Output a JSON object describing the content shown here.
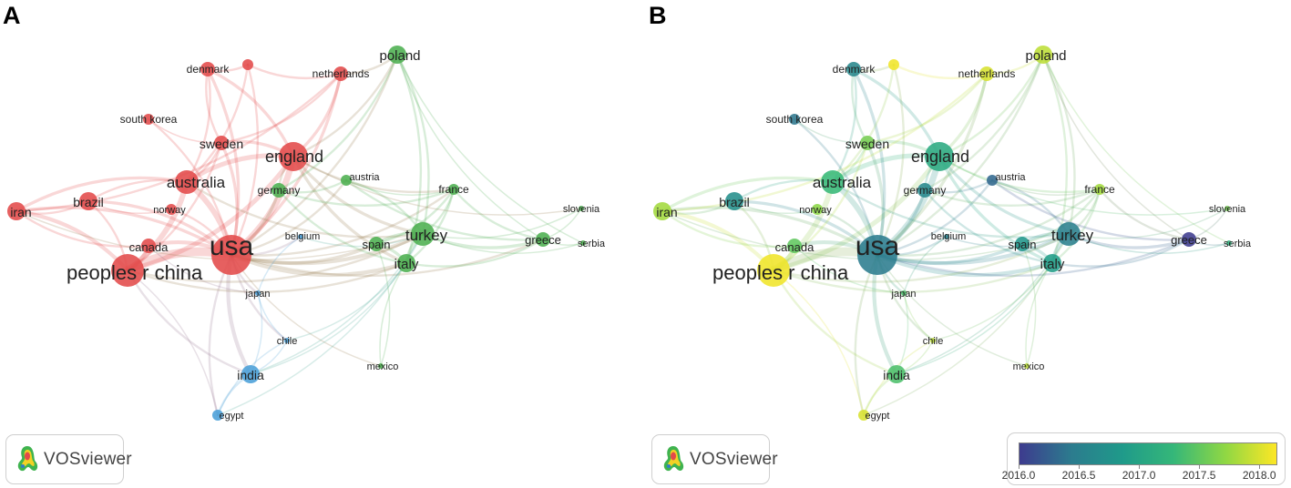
{
  "panels": [
    {
      "letter": "A",
      "color_mode": "cluster",
      "logo_text": "VOSviewer"
    },
    {
      "letter": "B",
      "color_mode": "overlay",
      "logo_text": "VOSviewer"
    }
  ],
  "legend": {
    "min": 2016.0,
    "max": 2018.15,
    "ticks": [
      "2016.0",
      "2016.5",
      "2017.0",
      "2017.5",
      "2018.0"
    ],
    "gradient": [
      "#3d3b8e",
      "#2c7b8e",
      "#1f9a8a",
      "#35b779",
      "#8fd744",
      "#fde725"
    ]
  },
  "cluster_colors": {
    "1": "#e34a4a",
    "2": "#4caf50",
    "3": "#4a9fd8"
  },
  "nodes": [
    {
      "id": "usa",
      "label": "usa",
      "cluster": 1,
      "year": 2016.45,
      "weight": 10
    },
    {
      "id": "china",
      "label": "peoples r china",
      "cluster": 1,
      "year": 2018.1,
      "weight": 9
    },
    {
      "id": "england",
      "label": "england",
      "cluster": 1,
      "year": 2017.1,
      "weight": 6
    },
    {
      "id": "australia",
      "label": "australia",
      "cluster": 1,
      "year": 2017.3,
      "weight": 5
    },
    {
      "id": "iran",
      "label": "iran",
      "cluster": 1,
      "year": 2017.8,
      "weight": 4
    },
    {
      "id": "brazil",
      "label": "brazil",
      "cluster": 1,
      "year": 2016.7,
      "weight": 4
    },
    {
      "id": "canada",
      "label": "canada",
      "cluster": 1,
      "year": 2017.5,
      "weight": 3
    },
    {
      "id": "sweden",
      "label": "sweden",
      "cluster": 1,
      "year": 2017.6,
      "weight": 3
    },
    {
      "id": "denmark",
      "label": "denmark",
      "cluster": 1,
      "year": 2016.6,
      "weight": 3
    },
    {
      "id": "netherlands",
      "label": "netherlands",
      "cluster": 1,
      "year": 2018.0,
      "weight": 3
    },
    {
      "id": "southkorea",
      "label": "south korea",
      "cluster": 1,
      "year": 2016.4,
      "weight": 2
    },
    {
      "id": "norway",
      "label": "norway",
      "cluster": 1,
      "year": 2017.7,
      "weight": 2
    },
    {
      "id": "unlabeled",
      "label": "",
      "cluster": 1,
      "year": 2018.1,
      "weight": 2
    },
    {
      "id": "turkey",
      "label": "turkey",
      "cluster": 2,
      "year": 2016.5,
      "weight": 5
    },
    {
      "id": "italy",
      "label": "italy",
      "cluster": 2,
      "year": 2016.9,
      "weight": 4
    },
    {
      "id": "spain",
      "label": "spain",
      "cluster": 2,
      "year": 2016.8,
      "weight": 3
    },
    {
      "id": "germany",
      "label": "germany",
      "cluster": 2,
      "year": 2016.6,
      "weight": 3
    },
    {
      "id": "poland",
      "label": "poland",
      "cluster": 2,
      "year": 2017.9,
      "weight": 4
    },
    {
      "id": "france",
      "label": "france",
      "cluster": 2,
      "year": 2017.8,
      "weight": 2
    },
    {
      "id": "austria",
      "label": "austria",
      "cluster": 2,
      "year": 2016.3,
      "weight": 2
    },
    {
      "id": "greece",
      "label": "greece",
      "cluster": 2,
      "year": 2016.0,
      "weight": 3
    },
    {
      "id": "slovenia",
      "label": "slovenia",
      "cluster": 2,
      "year": 2017.6,
      "weight": 1
    },
    {
      "id": "serbia",
      "label": "serbia",
      "cluster": 2,
      "year": 2017.2,
      "weight": 1
    },
    {
      "id": "mexico",
      "label": "mexico",
      "cluster": 2,
      "year": 2017.9,
      "weight": 1
    },
    {
      "id": "belgium",
      "label": "belgium",
      "cluster": 3,
      "year": 2016.5,
      "weight": 1
    },
    {
      "id": "japan",
      "label": "japan",
      "cluster": 3,
      "year": 2017.4,
      "weight": 1
    },
    {
      "id": "chile",
      "label": "chile",
      "cluster": 3,
      "year": 2017.9,
      "weight": 1
    },
    {
      "id": "india",
      "label": "india",
      "cluster": 3,
      "year": 2017.4,
      "weight": 4
    },
    {
      "id": "egypt",
      "label": "egypt",
      "cluster": 3,
      "year": 2018.0,
      "weight": 2
    }
  ],
  "links": [
    [
      "usa",
      "china",
      10
    ],
    [
      "usa",
      "england",
      7
    ],
    [
      "usa",
      "australia",
      6
    ],
    [
      "china",
      "australia",
      6
    ],
    [
      "china",
      "england",
      5
    ],
    [
      "china",
      "iran",
      4
    ],
    [
      "china",
      "canada",
      4
    ],
    [
      "usa",
      "canada",
      4
    ],
    [
      "usa",
      "brazil",
      3
    ],
    [
      "usa",
      "iran",
      3
    ],
    [
      "england",
      "australia",
      5
    ],
    [
      "usa",
      "turkey",
      4
    ],
    [
      "usa",
      "italy",
      4
    ],
    [
      "usa",
      "spain",
      3
    ],
    [
      "usa",
      "germany",
      3
    ],
    [
      "usa",
      "india",
      4
    ],
    [
      "usa",
      "japan",
      2
    ],
    [
      "usa",
      "belgium",
      2
    ],
    [
      "usa",
      "chile",
      2
    ],
    [
      "usa",
      "netherlands",
      3
    ],
    [
      "usa",
      "sweden",
      3
    ],
    [
      "usa",
      "denmark",
      3
    ],
    [
      "usa",
      "poland",
      2
    ],
    [
      "usa",
      "france",
      2
    ],
    [
      "usa",
      "greece",
      2
    ],
    [
      "usa",
      "southkorea",
      2
    ],
    [
      "usa",
      "norway",
      2
    ],
    [
      "usa",
      "unlabeled",
      2
    ],
    [
      "usa",
      "egypt",
      2
    ],
    [
      "usa",
      "mexico",
      1
    ],
    [
      "usa",
      "austria",
      2
    ],
    [
      "england",
      "netherlands",
      3
    ],
    [
      "england",
      "sweden",
      3
    ],
    [
      "england",
      "denmark",
      3
    ],
    [
      "england",
      "turkey",
      3
    ],
    [
      "england",
      "italy",
      3
    ],
    [
      "england",
      "germany",
      2
    ],
    [
      "england",
      "poland",
      2
    ],
    [
      "australia",
      "iran",
      3
    ],
    [
      "australia",
      "brazil",
      2
    ],
    [
      "australia",
      "sweden",
      2
    ],
    [
      "australia",
      "denmark",
      2
    ],
    [
      "australia",
      "unlabeled",
      2
    ],
    [
      "china",
      "brazil",
      2
    ],
    [
      "china",
      "india",
      2
    ],
    [
      "china",
      "sweden",
      2
    ],
    [
      "iran",
      "brazil",
      2
    ],
    [
      "iran",
      "canada",
      2
    ],
    [
      "iran",
      "netherlands",
      2
    ],
    [
      "denmark",
      "unlabeled",
      2
    ],
    [
      "denmark",
      "sweden",
      2
    ],
    [
      "unlabeled",
      "netherlands",
      2
    ],
    [
      "sweden",
      "netherlands",
      2
    ],
    [
      "southkorea",
      "sweden",
      1
    ],
    [
      "turkey",
      "italy",
      4
    ],
    [
      "turkey",
      "spain",
      3
    ],
    [
      "turkey",
      "greece",
      3
    ],
    [
      "turkey",
      "poland",
      2
    ],
    [
      "turkey",
      "france",
      2
    ],
    [
      "turkey",
      "slovenia",
      1
    ],
    [
      "turkey",
      "serbia",
      1
    ],
    [
      "turkey",
      "austria",
      2
    ],
    [
      "italy",
      "spain",
      3
    ],
    [
      "italy",
      "greece",
      2
    ],
    [
      "italy",
      "france",
      2
    ],
    [
      "italy",
      "poland",
      2
    ],
    [
      "italy",
      "mexico",
      1
    ],
    [
      "spain",
      "france",
      2
    ],
    [
      "germany",
      "austria",
      2
    ],
    [
      "germany",
      "poland",
      2
    ],
    [
      "germany",
      "france",
      2
    ],
    [
      "greece",
      "serbia",
      1
    ],
    [
      "greece",
      "slovenia",
      1
    ],
    [
      "france",
      "greece",
      2
    ],
    [
      "poland",
      "greece",
      1
    ],
    [
      "poland",
      "serbia",
      1
    ],
    [
      "austria",
      "greece",
      2
    ],
    [
      "austria",
      "france",
      1
    ],
    [
      "india",
      "egypt",
      2
    ],
    [
      "india",
      "chile",
      1
    ],
    [
      "india",
      "japan",
      1
    ],
    [
      "japan",
      "chile",
      1
    ],
    [
      "chile",
      "egypt",
      1
    ],
    [
      "belgium",
      "japan",
      1
    ],
    [
      "belgium",
      "turkey",
      1
    ],
    [
      "india",
      "turkey",
      1
    ],
    [
      "egypt",
      "turkey",
      1
    ],
    [
      "mexico",
      "spain",
      1
    ],
    [
      "canada",
      "japan",
      1
    ],
    [
      "brazil",
      "norway",
      1
    ],
    [
      "england",
      "slovenia",
      1
    ],
    [
      "england",
      "france",
      2
    ],
    [
      "netherlands",
      "poland",
      2
    ],
    [
      "china",
      "turkey",
      2
    ],
    [
      "china",
      "italy",
      2
    ],
    [
      "australia",
      "turkey",
      2
    ],
    [
      "iran",
      "turkey",
      1
    ],
    [
      "germany",
      "italy",
      2
    ],
    [
      "egypt",
      "china",
      1
    ],
    [
      "chile",
      "italy",
      1
    ],
    [
      "india",
      "italy",
      1
    ]
  ]
}
